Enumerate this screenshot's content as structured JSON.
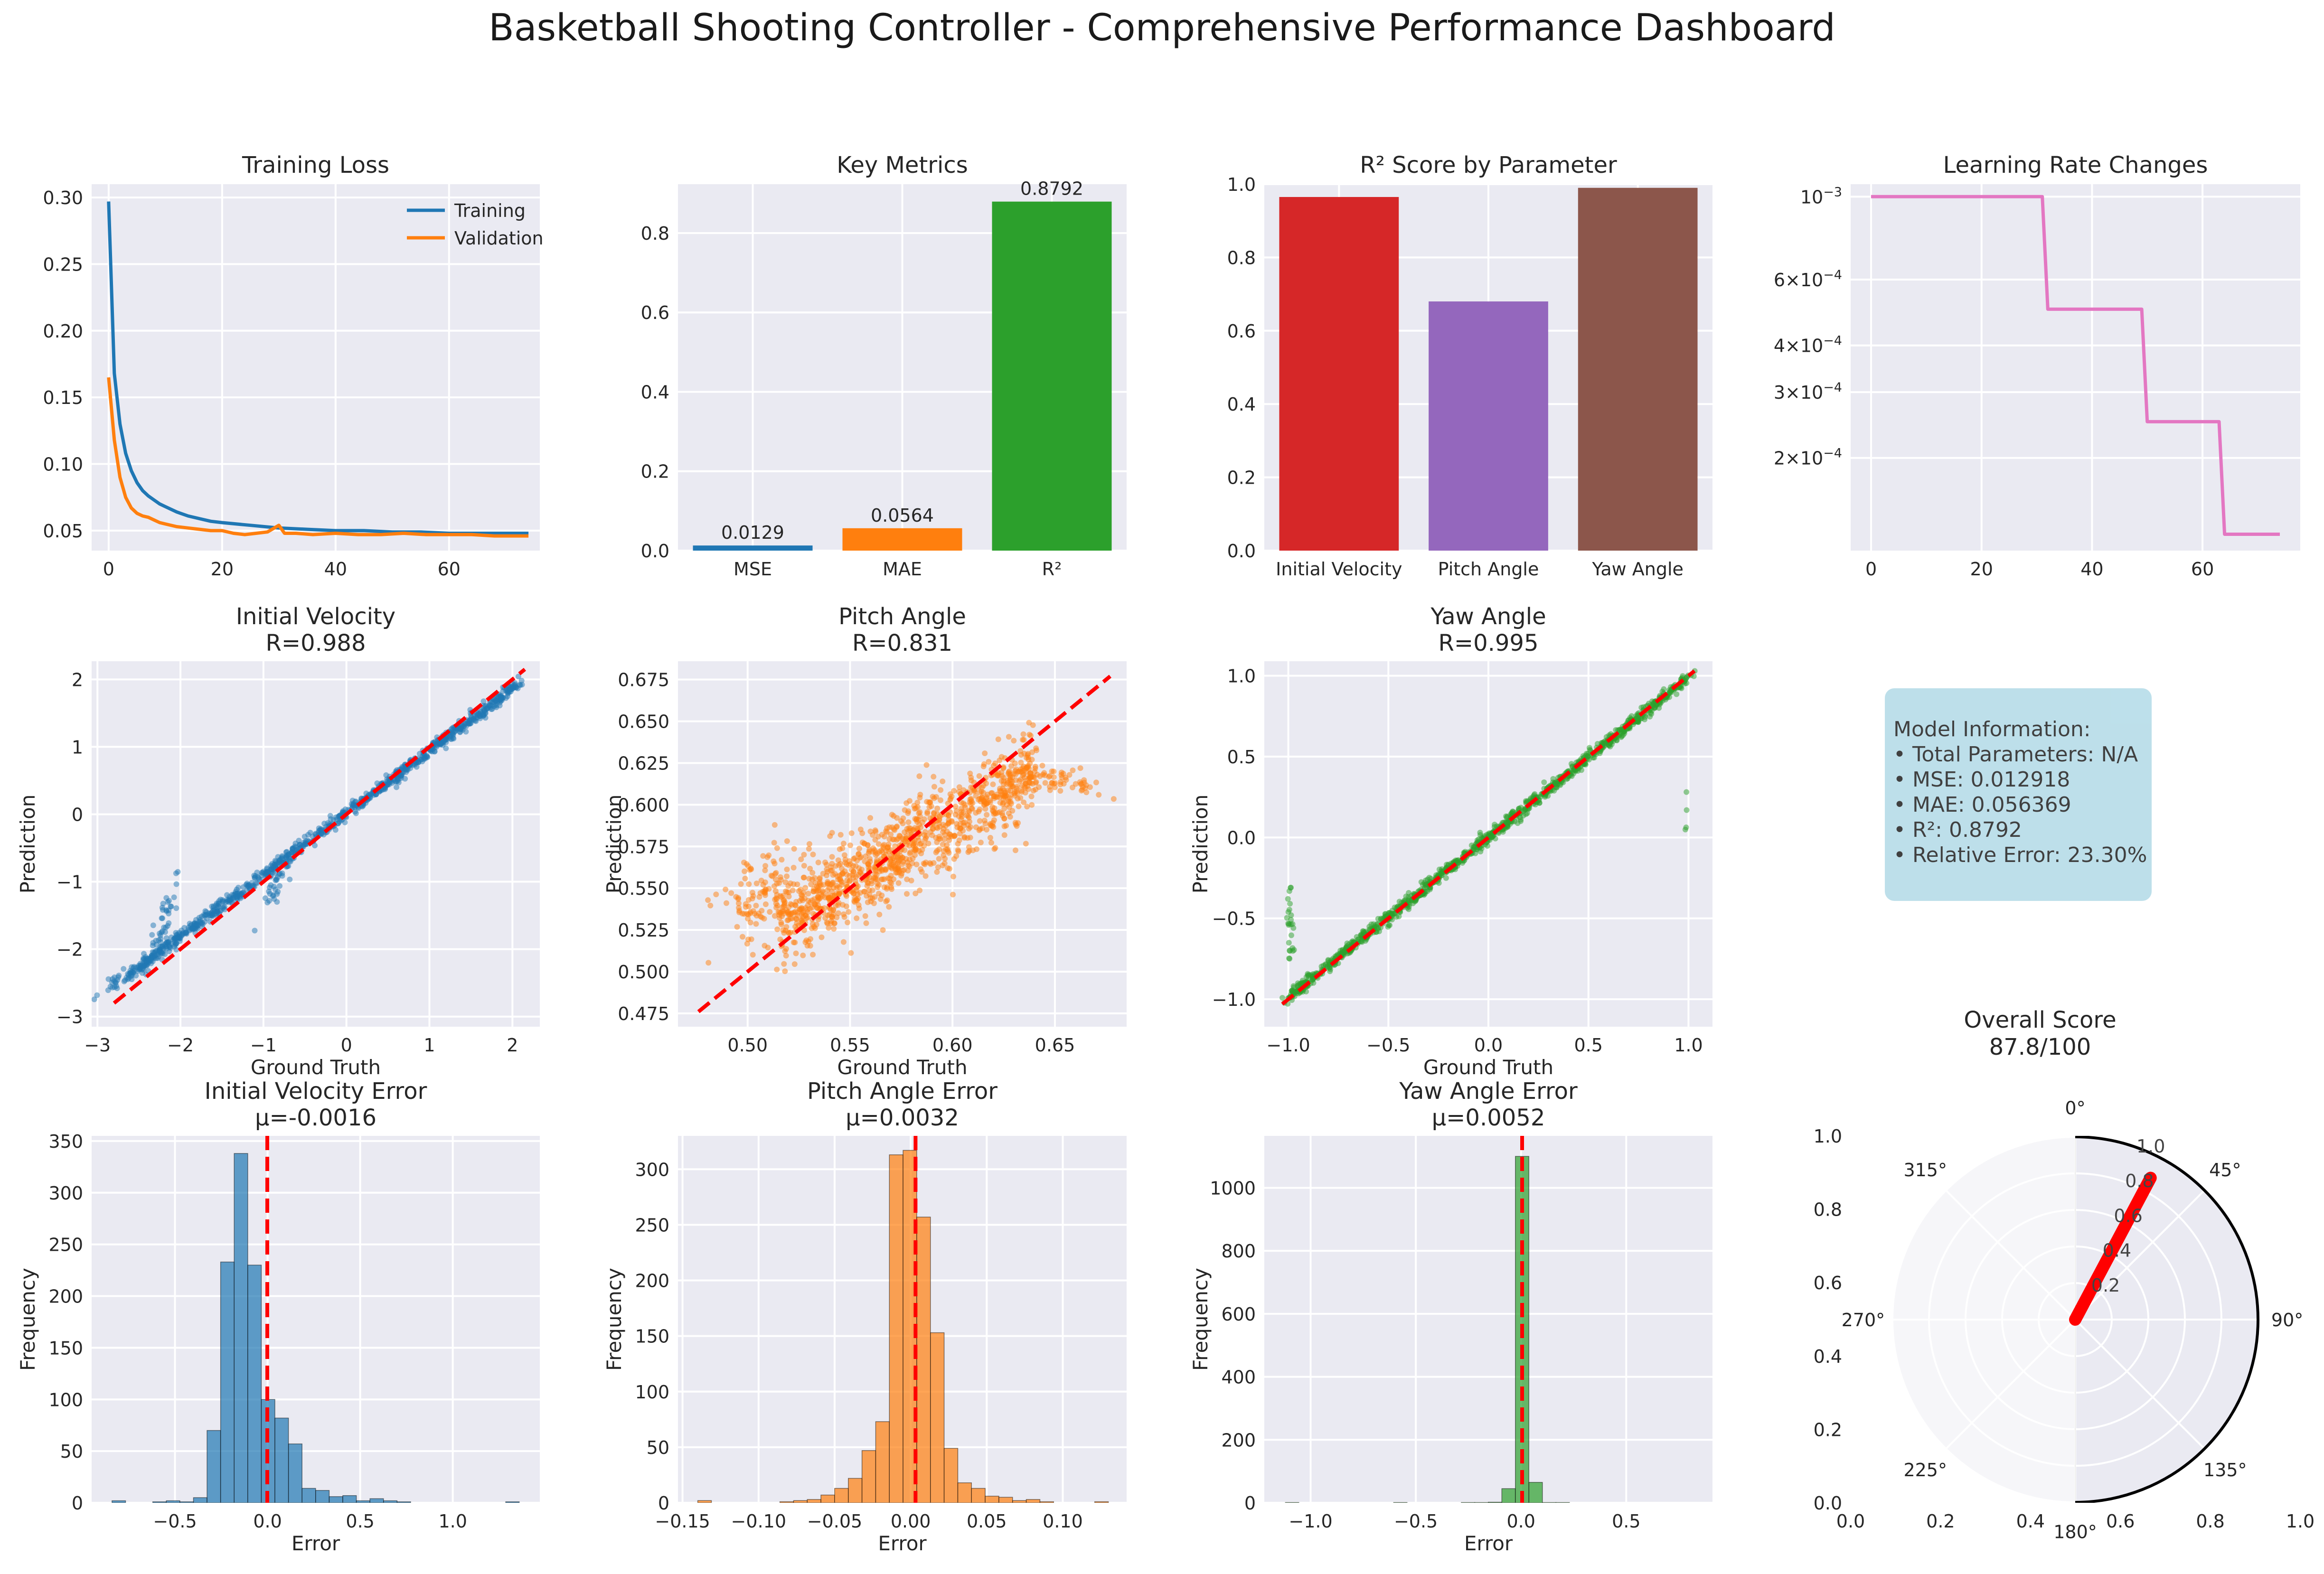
{
  "figure": {
    "title": "Basketball Shooting Controller - Comprehensive Performance Dashboard"
  },
  "model_info": {
    "lines": [
      "Model Information:",
      "• Total Parameters: N/A",
      "• MSE: 0.012918",
      "• MAE: 0.056369",
      "• R²: 0.8792",
      "• Relative Error: 23.30%"
    ]
  },
  "colors": {
    "axes_bg": "#eaeaf2",
    "grid": "#ffffff",
    "blue": "#1f77b4",
    "orange": "#ff7f0e",
    "green": "#2ca02c",
    "red": "#d62728",
    "purple": "#9467bd",
    "brown": "#8c564b",
    "pink": "#e377c2",
    "diag": "#ff0000",
    "info_box": "#add8e6"
  },
  "chart_data": [
    {
      "id": "training_loss",
      "type": "line",
      "title": "Training Loss",
      "xlabel": "",
      "ylabel": "",
      "xlim": [
        -3,
        76
      ],
      "ylim": [
        0.035,
        0.31
      ],
      "xticks": [
        0,
        20,
        40,
        60
      ],
      "yticks": [
        0.05,
        0.1,
        0.15,
        0.2,
        0.25,
        0.3
      ],
      "ytick_labels": [
        "0.05",
        "0.10",
        "0.15",
        "0.20",
        "0.25",
        "0.30"
      ],
      "legend": "top-right",
      "series": [
        {
          "name": "Training",
          "color": "#1f77b4",
          "x": [
            0,
            1,
            2,
            3,
            4,
            5,
            6,
            7,
            8,
            9,
            10,
            12,
            14,
            16,
            18,
            20,
            25,
            30,
            35,
            40,
            45,
            50,
            55,
            60,
            65,
            70,
            74
          ],
          "y": [
            0.297,
            0.168,
            0.13,
            0.108,
            0.095,
            0.086,
            0.08,
            0.076,
            0.073,
            0.07,
            0.068,
            0.064,
            0.061,
            0.059,
            0.057,
            0.056,
            0.054,
            0.052,
            0.051,
            0.05,
            0.05,
            0.049,
            0.049,
            0.048,
            0.048,
            0.048,
            0.048
          ]
        },
        {
          "name": "Validation",
          "color": "#ff7f0e",
          "x": [
            0,
            1,
            2,
            3,
            4,
            5,
            6,
            7,
            8,
            9,
            10,
            12,
            14,
            16,
            18,
            20,
            22,
            24,
            26,
            28,
            30,
            31,
            33,
            36,
            40,
            44,
            48,
            52,
            56,
            60,
            64,
            68,
            72,
            74
          ],
          "y": [
            0.165,
            0.118,
            0.09,
            0.075,
            0.067,
            0.063,
            0.061,
            0.06,
            0.058,
            0.056,
            0.055,
            0.053,
            0.052,
            0.051,
            0.05,
            0.05,
            0.048,
            0.047,
            0.048,
            0.049,
            0.054,
            0.048,
            0.048,
            0.047,
            0.048,
            0.047,
            0.047,
            0.048,
            0.047,
            0.047,
            0.047,
            0.046,
            0.046,
            0.046
          ]
        }
      ]
    },
    {
      "id": "key_metrics",
      "type": "bar",
      "title": "Key Metrics",
      "categories": [
        "MSE",
        "MAE",
        "R²"
      ],
      "values": [
        0.0129,
        0.0564,
        0.8792
      ],
      "value_labels": [
        "0.0129",
        "0.0564",
        "0.8792"
      ],
      "colors": [
        "#1f77b4",
        "#ff7f0e",
        "#2ca02c"
      ],
      "ylim": [
        0,
        0.9231
      ],
      "yticks": [
        0,
        0.2,
        0.4,
        0.6,
        0.8
      ],
      "ytick_labels": [
        "0.0",
        "0.2",
        "0.4",
        "0.6",
        "0.8"
      ]
    },
    {
      "id": "r2_by_param",
      "type": "bar",
      "title": "R² Score by Parameter",
      "categories": [
        "Initial Velocity",
        "Pitch Angle",
        "Yaw Angle"
      ],
      "values": [
        0.965,
        0.68,
        0.99
      ],
      "colors": [
        "#d62728",
        "#9467bd",
        "#8c564b"
      ],
      "ylim": [
        0,
        1.0
      ],
      "yticks": [
        0,
        0.2,
        0.4,
        0.6,
        0.8,
        1.0
      ],
      "ytick_labels": [
        "0.0",
        "0.2",
        "0.4",
        "0.6",
        "0.8",
        "1.0"
      ]
    },
    {
      "id": "learning_rate",
      "type": "line",
      "title": "Learning Rate Changes",
      "yscale": "log",
      "xlim": [
        -3.7,
        77.7
      ],
      "ylim": [
        0.000113,
        0.00108
      ],
      "xticks": [
        0,
        20,
        40,
        60
      ],
      "yticks": [
        0.001,
        0.0006,
        0.0004,
        0.0003,
        0.0002
      ],
      "ytick_labels": [
        [
          "10",
          "−3"
        ],
        [
          "6×10",
          "−4"
        ],
        [
          "4×10",
          "−4"
        ],
        [
          "3×10",
          "−4"
        ],
        [
          "2×10",
          "−4"
        ]
      ],
      "series": [
        {
          "name": "",
          "color": "#e377c2",
          "x": [
            0,
            31,
            32,
            49,
            50,
            63,
            64,
            74
          ],
          "y": [
            0.001,
            0.001,
            0.0005,
            0.0005,
            0.00025,
            0.00025,
            0.000125,
            0.000125
          ]
        }
      ]
    },
    {
      "id": "scatter_velocity",
      "type": "scatter",
      "title": "Initial Velocity",
      "subtitle": "R=0.988",
      "xlabel": "Ground Truth",
      "ylabel": "Prediction",
      "color": "#1f77b4",
      "xlim": [
        -3.07,
        2.33
      ],
      "ylim": [
        -3.15,
        2.27
      ],
      "xticks": [
        -3,
        -2,
        -1,
        0,
        1,
        2
      ],
      "yticks": [
        -3,
        -2,
        -1,
        0,
        1,
        2
      ],
      "xtick_labels": [
        "−3",
        "−2",
        "−1",
        "0",
        "1",
        "2"
      ],
      "ytick_labels": [
        "−3",
        "−2",
        "−1",
        "0",
        "1",
        "2"
      ],
      "diag": [
        -2.8,
        2.15
      ],
      "n": 900,
      "slope": 0.92,
      "intercept": 0.02,
      "noise": 0.05,
      "clusters": [
        {
          "cx": -2.6,
          "cy": -2.35,
          "sx": 0.18,
          "sy": 0.12,
          "n": 60,
          "slope": 0.8
        },
        {
          "cx": -2.2,
          "cy": -1.55,
          "sx": 0.08,
          "sy": 0.4,
          "n": 40,
          "slope": 3.0
        },
        {
          "cx": -0.85,
          "cy": -1.0,
          "sx": 0.1,
          "sy": 0.35,
          "n": 35,
          "slope": 2.0
        }
      ],
      "points_range": [
        -2.5,
        2.1
      ]
    },
    {
      "id": "scatter_pitch",
      "type": "scatter",
      "title": "Pitch Angle",
      "subtitle": "R=0.831",
      "xlabel": "Ground Truth",
      "ylabel": "Prediction",
      "color": "#ff7f0e",
      "xlim": [
        0.466,
        0.685
      ],
      "ylim": [
        0.467,
        0.686
      ],
      "xticks": [
        0.5,
        0.55,
        0.6,
        0.65
      ],
      "yticks": [
        0.475,
        0.5,
        0.525,
        0.55,
        0.575,
        0.6,
        0.625,
        0.65,
        0.675
      ],
      "xtick_labels": [
        "0.50",
        "0.55",
        "0.60",
        "0.65"
      ],
      "ytick_labels": [
        "0.475",
        "0.500",
        "0.525",
        "0.550",
        "0.575",
        "0.600",
        "0.625",
        "0.650",
        "0.675"
      ],
      "diag": [
        0.476,
        0.677
      ],
      "n": 1100,
      "slope": 0.72,
      "intercept": 0.158,
      "noise": 0.013,
      "clusters": [
        {
          "cx": 0.505,
          "cy": 0.545,
          "sx": 0.01,
          "sy": 0.035,
          "n": 110,
          "slope": 0.5
        },
        {
          "cx": 0.65,
          "cy": 0.615,
          "sx": 0.012,
          "sy": 0.01,
          "n": 70,
          "slope": -0.2
        }
      ],
      "points_range": [
        0.515,
        0.64
      ]
    },
    {
      "id": "scatter_yaw",
      "type": "scatter",
      "title": "Yaw Angle",
      "subtitle": "R=0.995",
      "xlabel": "Ground Truth",
      "ylabel": "Prediction",
      "color": "#2ca02c",
      "xlim": [
        -1.12,
        1.12
      ],
      "ylim": [
        -1.17,
        1.09
      ],
      "xticks": [
        -1,
        -0.5,
        0,
        0.5,
        1
      ],
      "yticks": [
        -1,
        -0.5,
        0,
        0.5,
        1
      ],
      "xtick_labels": [
        "−1.0",
        "−0.5",
        "0.0",
        "0.5",
        "1.0"
      ],
      "ytick_labels": [
        "−1.0",
        "−0.5",
        "0.0",
        "0.5",
        "1.0"
      ],
      "diag": [
        -1.03,
        1.03
      ],
      "n": 1100,
      "slope": 0.99,
      "intercept": 0.0,
      "noise": 0.02,
      "clusters": [
        {
          "cx": -0.99,
          "cy": -0.55,
          "sx": 0.01,
          "sy": 0.25,
          "n": 25,
          "slope": 0
        },
        {
          "cx": 0.99,
          "cy": 0.2,
          "sx": 0.005,
          "sy": 0.25,
          "n": 4,
          "slope": 0
        }
      ],
      "points_range": [
        -1.0,
        1.0
      ]
    },
    {
      "id": "hist_velocity",
      "type": "bar",
      "title": "Initial Velocity Error",
      "subtitle": "μ=-0.0016",
      "xlabel": "Error",
      "ylabel": "Frequency",
      "color": "#1f77b4",
      "mean": -0.0016,
      "xlim": [
        -0.95,
        1.47
      ],
      "ylim": [
        0,
        355
      ],
      "xticks": [
        -0.5,
        0,
        0.5,
        1.0
      ],
      "xtick_labels": [
        "−0.5",
        "0.0",
        "0.5",
        "1.0"
      ],
      "yticks": [
        0,
        50,
        100,
        150,
        200,
        250,
        300,
        350
      ],
      "bin_start": -0.84,
      "bin_width": 0.0733,
      "values": [
        2,
        0,
        0,
        1,
        2,
        1,
        5,
        70,
        233,
        338,
        230,
        100,
        82,
        57,
        14,
        12,
        6,
        7,
        2,
        4,
        2,
        1,
        0,
        0,
        0,
        0,
        0,
        0,
        0,
        1
      ]
    },
    {
      "id": "hist_pitch",
      "type": "bar",
      "title": "Pitch Angle Error",
      "subtitle": "μ=0.0032",
      "xlabel": "Error",
      "ylabel": "Frequency",
      "color": "#ff7f0e",
      "mean": 0.0032,
      "xlim": [
        -0.153,
        0.142
      ],
      "ylim": [
        0,
        330
      ],
      "xticks": [
        -0.15,
        -0.1,
        -0.05,
        0,
        0.05,
        0.1
      ],
      "xtick_labels": [
        "−0.15",
        "−0.10",
        "−0.05",
        "0.00",
        "0.05",
        "0.10"
      ],
      "yticks": [
        0,
        50,
        100,
        150,
        200,
        250,
        300
      ],
      "bin_start": -0.14,
      "bin_width": 0.009,
      "values": [
        2,
        0,
        0,
        0,
        0,
        0,
        1,
        2,
        3,
        7,
        13,
        22,
        47,
        73,
        313,
        317,
        257,
        153,
        49,
        18,
        13,
        6,
        5,
        2,
        3,
        1,
        0,
        0,
        0,
        1
      ]
    },
    {
      "id": "hist_yaw",
      "type": "bar",
      "title": "Yaw Angle Error",
      "subtitle": "μ=0.0052",
      "xlabel": "Error",
      "ylabel": "Frequency",
      "color": "#2ca02c",
      "mean": 0.0052,
      "xlim": [
        -1.22,
        0.91
      ],
      "ylim": [
        0,
        1165
      ],
      "xticks": [
        -1.0,
        -0.5,
        0,
        0.5
      ],
      "xtick_labels": [
        "−1.0",
        "−0.5",
        "0.0",
        "0.5"
      ],
      "yticks": [
        0,
        200,
        400,
        600,
        800,
        1000
      ],
      "bin_start": -1.12,
      "bin_width": 0.0643,
      "values": [
        1,
        0,
        0,
        0,
        0,
        0,
        0,
        0,
        1,
        0,
        0,
        0,
        0,
        1,
        1,
        2,
        45,
        1100,
        65,
        1,
        1,
        0,
        0,
        0,
        0,
        0,
        0,
        0,
        0,
        0
      ]
    },
    {
      "id": "overall_score",
      "type": "polar",
      "title": "Overall Score",
      "subtitle": "87.8/100",
      "score": 0.878,
      "angle_deg": 28,
      "rticks": [
        0.2,
        0.4,
        0.6,
        0.8,
        1.0
      ],
      "rtick_labels": [
        "0.2",
        "0.4",
        "0.6",
        "0.8",
        "1.0"
      ],
      "angle_labels": [
        "0°",
        "45°",
        "90°",
        "135°",
        "180°",
        "225°",
        "270°",
        "315°"
      ],
      "xticks": [
        0,
        0.2,
        0.4,
        0.6,
        0.8,
        1.0
      ],
      "yticks": [
        0,
        0.2,
        0.4,
        0.6,
        0.8,
        1.0
      ],
      "xtick_labels": [
        "0.0",
        "0.2",
        "0.4",
        "0.6",
        "0.8",
        "1.0"
      ],
      "ytick_labels": [
        "0.0",
        "0.2",
        "0.4",
        "0.6",
        "0.8",
        "1.0"
      ]
    }
  ]
}
